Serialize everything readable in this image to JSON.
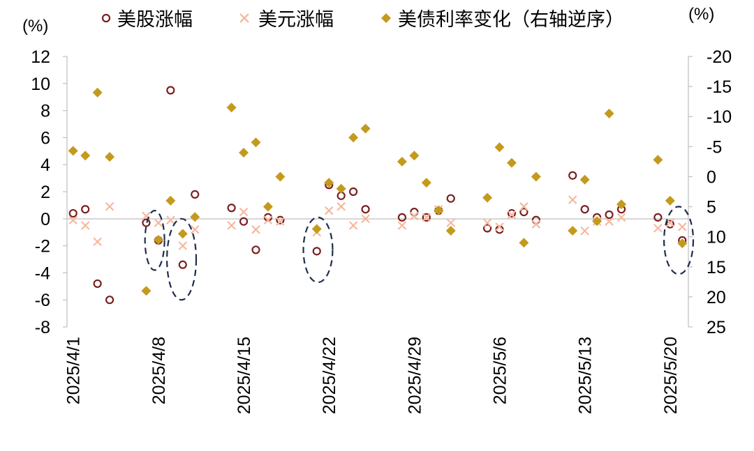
{
  "chart_data": {
    "type": "scatter",
    "left_unit": "(%)",
    "right_unit": "(%)",
    "x_tick_labels": [
      "2025/4/1",
      "2025/4/8",
      "2025/4/15",
      "2025/4/22",
      "2025/4/29",
      "2025/5/6",
      "2025/5/13",
      "2025/5/20"
    ],
    "left_axis": {
      "min": -8,
      "max": 12,
      "ticks": [
        12,
        10,
        8,
        6,
        4,
        2,
        0,
        -2,
        -4,
        -6,
        -8
      ]
    },
    "right_axis": {
      "min": -20,
      "max": 25,
      "reversed": true,
      "ticks": [
        -20,
        -15,
        -10,
        -5,
        0,
        5,
        10,
        15,
        20,
        25
      ]
    },
    "x_range": [
      0,
      51
    ],
    "series": [
      {
        "name": "美股涨幅",
        "axis": "left",
        "marker": "circle",
        "color": "#7a1f1f",
        "points": [
          [
            0.5,
            0.4
          ],
          [
            1.5,
            0.7
          ],
          [
            2.5,
            -4.8
          ],
          [
            3.5,
            -6.0
          ],
          [
            6.5,
            -0.3
          ],
          [
            7.5,
            -1.6
          ],
          [
            8.5,
            9.5
          ],
          [
            9.5,
            -3.4
          ],
          [
            10.5,
            1.8
          ],
          [
            13.5,
            0.8
          ],
          [
            14.5,
            -0.2
          ],
          [
            15.5,
            -2.3
          ],
          [
            16.5,
            0.1
          ],
          [
            17.5,
            -0.1
          ],
          [
            20.5,
            -2.4
          ],
          [
            21.5,
            2.5
          ],
          [
            22.5,
            1.7
          ],
          [
            23.5,
            2.0
          ],
          [
            24.5,
            0.7
          ],
          [
            27.5,
            0.1
          ],
          [
            28.5,
            0.5
          ],
          [
            29.5,
            0.1
          ],
          [
            30.5,
            0.6
          ],
          [
            31.5,
            1.5
          ],
          [
            34.5,
            -0.7
          ],
          [
            35.5,
            -0.8
          ],
          [
            36.5,
            0.4
          ],
          [
            37.5,
            0.5
          ],
          [
            38.5,
            -0.1
          ],
          [
            41.5,
            3.2
          ],
          [
            42.5,
            0.7
          ],
          [
            43.5,
            0.1
          ],
          [
            44.5,
            0.3
          ],
          [
            45.5,
            0.7
          ],
          [
            48.5,
            0.1
          ],
          [
            49.5,
            -0.4
          ],
          [
            50.5,
            -1.6
          ]
        ]
      },
      {
        "name": "美元涨幅",
        "axis": "left",
        "marker": "x",
        "color": "#f5b9a0",
        "points": [
          [
            0.5,
            -0.1
          ],
          [
            1.5,
            -0.5
          ],
          [
            2.5,
            -1.7
          ],
          [
            3.5,
            0.9
          ],
          [
            6.5,
            0.2
          ],
          [
            7.5,
            -0.3
          ],
          [
            8.5,
            -0.1
          ],
          [
            9.5,
            -2.0
          ],
          [
            10.5,
            -0.8
          ],
          [
            13.5,
            -0.5
          ],
          [
            14.5,
            0.5
          ],
          [
            15.5,
            -0.8
          ],
          [
            16.5,
            -0.1
          ],
          [
            17.5,
            -0.2
          ],
          [
            20.5,
            -1.0
          ],
          [
            21.5,
            0.6
          ],
          [
            22.5,
            0.9
          ],
          [
            23.5,
            -0.5
          ],
          [
            24.5,
            0.0
          ],
          [
            27.5,
            -0.5
          ],
          [
            28.5,
            0.2
          ],
          [
            29.5,
            0.1
          ],
          [
            30.5,
            0.7
          ],
          [
            31.5,
            -0.3
          ],
          [
            34.5,
            -0.3
          ],
          [
            35.5,
            -0.6
          ],
          [
            36.5,
            0.3
          ],
          [
            37.5,
            0.9
          ],
          [
            38.5,
            -0.4
          ],
          [
            41.5,
            1.4
          ],
          [
            42.5,
            -0.9
          ],
          [
            43.5,
            -0.2
          ],
          [
            44.5,
            -0.2
          ],
          [
            45.5,
            0.1
          ],
          [
            48.5,
            -0.7
          ],
          [
            49.5,
            -0.3
          ],
          [
            50.5,
            -0.6
          ]
        ]
      },
      {
        "name": "美债利率变化（右轴逆序）",
        "axis": "right",
        "marker": "diamond",
        "color": "#c49a1e",
        "points": [
          [
            0.5,
            -4.3
          ],
          [
            1.5,
            -3.5
          ],
          [
            2.5,
            -14.0
          ],
          [
            3.5,
            -3.3
          ],
          [
            6.5,
            19.0
          ],
          [
            7.5,
            10.5
          ],
          [
            8.5,
            4.0
          ],
          [
            9.5,
            9.5
          ],
          [
            10.5,
            6.7
          ],
          [
            13.5,
            -11.5
          ],
          [
            14.5,
            -4.0
          ],
          [
            15.5,
            -5.7
          ],
          [
            16.5,
            5.0
          ],
          [
            17.5,
            0.0
          ],
          [
            20.5,
            8.7
          ],
          [
            21.5,
            1.0
          ],
          [
            22.5,
            2.0
          ],
          [
            23.5,
            -6.5
          ],
          [
            24.5,
            -8.0
          ],
          [
            27.5,
            -2.5
          ],
          [
            28.5,
            -3.5
          ],
          [
            29.5,
            1.0
          ],
          [
            30.5,
            5.6
          ],
          [
            31.5,
            9.0
          ],
          [
            34.5,
            3.5
          ],
          [
            35.5,
            -4.9
          ],
          [
            36.5,
            -2.3
          ],
          [
            37.5,
            11.0
          ],
          [
            38.5,
            0.0
          ],
          [
            41.5,
            9.0
          ],
          [
            42.5,
            0.5
          ],
          [
            43.5,
            7.4
          ],
          [
            44.5,
            -10.5
          ],
          [
            45.5,
            4.6
          ],
          [
            48.5,
            -2.8
          ],
          [
            49.5,
            4.0
          ],
          [
            50.5,
            11.1
          ]
        ]
      }
    ],
    "annotations": [
      {
        "type": "dashed-ellipse",
        "cx": 7.2,
        "cy": -1.6,
        "rx": 0.8,
        "ry": 2.2
      },
      {
        "type": "dashed-ellipse",
        "cx": 9.4,
        "cy": -3.0,
        "rx": 1.2,
        "ry": 3.0
      },
      {
        "type": "dashed-ellipse",
        "cx": 20.6,
        "cy": -2.3,
        "rx": 1.2,
        "ry": 2.4
      },
      {
        "type": "dashed-ellipse",
        "cx": 50.2,
        "cy": -1.6,
        "rx": 1.2,
        "ry": 2.5
      }
    ]
  }
}
